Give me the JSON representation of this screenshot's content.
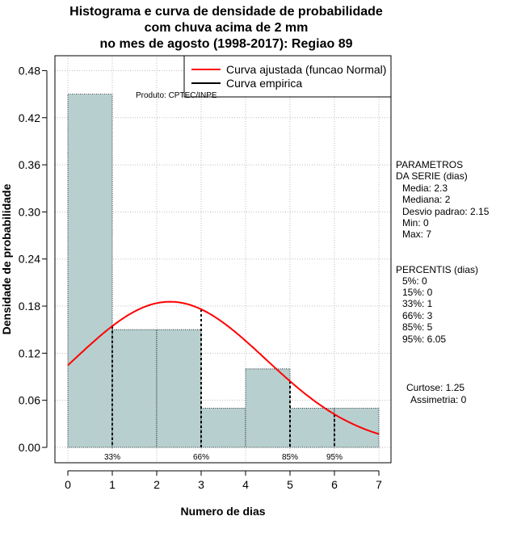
{
  "chart_data": {
    "type": "bar",
    "title": [
      "Histograma e curva de densidade de probabilidade",
      "com chuva acima de 2 mm",
      "no mes de agosto (1998-2017): Regiao 89"
    ],
    "xlabel": "Numero de dias",
    "ylabel": "Densidade de probabilidade",
    "xlim": [
      -0.3,
      7.3
    ],
    "ylim": [
      0,
      0.5
    ],
    "xticks": [
      0,
      1,
      2,
      3,
      4,
      5,
      6,
      7
    ],
    "yticks": [
      0.0,
      0.06,
      0.12,
      0.18,
      0.24,
      0.3,
      0.36,
      0.42,
      0.48
    ],
    "ytick_labels": [
      "0.00",
      "0.06",
      "0.12",
      "0.18",
      "0.24",
      "0.30",
      "0.36",
      "0.42",
      "0.48"
    ],
    "bins": [
      {
        "from": 0,
        "to": 1,
        "density": 0.45
      },
      {
        "from": 1,
        "to": 2,
        "density": 0.15
      },
      {
        "from": 2,
        "to": 3,
        "density": 0.15
      },
      {
        "from": 3,
        "to": 4,
        "density": 0.05
      },
      {
        "from": 4,
        "to": 5,
        "density": 0.1
      },
      {
        "from": 5,
        "to": 6,
        "density": 0.05
      },
      {
        "from": 6,
        "to": 7,
        "density": 0.05
      }
    ],
    "normal_curve": {
      "mean": 2.3,
      "sd": 2.15,
      "color": "#ff0000"
    },
    "percentile_markers": [
      {
        "label": "33%",
        "x": 1
      },
      {
        "label": "66%",
        "x": 3
      },
      {
        "label": "85%",
        "x": 5
      },
      {
        "label": "95%",
        "x": 6
      }
    ],
    "legend": [
      {
        "label": "Curva ajustada (funcao Normal)",
        "color": "#ff0000"
      },
      {
        "label": "Curva empirica",
        "color": "#000000"
      }
    ],
    "credit": "Produto: CPTEC/INPE",
    "bar_color": "#b7cfcf"
  },
  "side": {
    "params_header": [
      "PARAMETROS",
      "DA SERIE (dias)"
    ],
    "params": [
      "Media: 2.3",
      "Mediana: 2",
      "Desvio padrao: 2.15",
      "Min: 0",
      "Max: 7"
    ],
    "pct_header": "PERCENTIS (dias)",
    "pcts": [
      "5%: 0",
      "15%: 0",
      "33%: 1",
      "66%: 3",
      "85%: 5",
      "95%: 6.05"
    ],
    "curtose": "Curtose: 1.25",
    "assimetria": "Assimetria: 0"
  }
}
